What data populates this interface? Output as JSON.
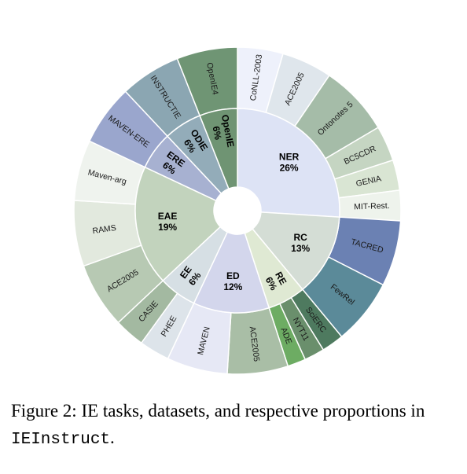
{
  "chart_data": {
    "type": "sunburst",
    "inner_ring": [
      {
        "name": "NER",
        "pct_label": "26%",
        "value": 26,
        "color": "#dde3f5"
      },
      {
        "name": "RC",
        "pct_label": "13%",
        "value": 13,
        "color": "#d4ddd5"
      },
      {
        "name": "RE",
        "pct_label": "6%",
        "value": 6,
        "color": "#dfe9d3"
      },
      {
        "name": "ED",
        "pct_label": "12%",
        "value": 12,
        "color": "#d3d6ec"
      },
      {
        "name": "EE",
        "pct_label": "6%",
        "value": 6,
        "color": "#d6dfe4"
      },
      {
        "name": "EAE",
        "pct_label": "19%",
        "value": 19,
        "color": "#c2d3bd"
      },
      {
        "name": "ERE",
        "pct_label": "6%",
        "value": 6,
        "color": "#a7b1d1"
      },
      {
        "name": "ODIE",
        "pct_label": "6%",
        "value": 6,
        "color": "#93acb9"
      },
      {
        "name": "OpenIE",
        "pct_label": "6%",
        "value": 6,
        "color": "#6f9473"
      }
    ],
    "outer_ring": [
      {
        "name": "CoNLL-2003",
        "parent": "NER",
        "value": 4.5,
        "color": "#eef1fb"
      },
      {
        "name": "ACE2005",
        "parent": "NER",
        "value": 5.0,
        "color": "#dfe6ec"
      },
      {
        "name": "Ontonotes 5",
        "parent": "NER",
        "value": 7.0,
        "color": "#a5bca8"
      },
      {
        "name": "BC5CDR",
        "parent": "NER",
        "value": 3.5,
        "color": "#c5d5c2"
      },
      {
        "name": "GENIA",
        "parent": "NER",
        "value": 3.0,
        "color": "#d9e5d3"
      },
      {
        "name": "MIT-Rest.",
        "parent": "NER",
        "value": 3.0,
        "color": "#eef3ec"
      },
      {
        "name": "TACRED",
        "parent": "RC",
        "value": 6.5,
        "color": "#6b81b3"
      },
      {
        "name": "FewRel",
        "parent": "RC",
        "value": 6.5,
        "color": "#5b8a99"
      },
      {
        "name": "SciERC",
        "parent": "RE",
        "value": 2.2,
        "color": "#4e7a5f"
      },
      {
        "name": "NYT11",
        "parent": "RE",
        "value": 2.0,
        "color": "#6a8f6c"
      },
      {
        "name": "ADE",
        "parent": "RE",
        "value": 1.8,
        "color": "#6dac63"
      },
      {
        "name": "ACE2005",
        "parent": "ED",
        "value": 6.0,
        "color": "#a9bea6"
      },
      {
        "name": "MAVEN",
        "parent": "ED",
        "value": 6.0,
        "color": "#e6e8f5"
      },
      {
        "name": "PHEE",
        "parent": "EE",
        "value": 3.0,
        "color": "#dde4ea"
      },
      {
        "name": "CASIE",
        "parent": "EE",
        "value": 3.0,
        "color": "#a3b9a1"
      },
      {
        "name": "ACE2005",
        "parent": "EAE",
        "value": 6.5,
        "color": "#b7c9b3"
      },
      {
        "name": "RAMS",
        "parent": "EAE",
        "value": 6.5,
        "color": "#e2e9de"
      },
      {
        "name": "Maven-arg",
        "parent": "EAE",
        "value": 6.0,
        "color": "#eff3ee"
      },
      {
        "name": "MAVEN-ERE",
        "parent": "ERE",
        "value": 6.0,
        "color": "#9aa6cd"
      },
      {
        "name": "INSTRUCTIE",
        "parent": "ODIE",
        "value": 6.0,
        "color": "#8ba6b2"
      },
      {
        "name": "OpenIE4",
        "parent": "OpenIE",
        "value": 6.0,
        "color": "#6f9574"
      }
    ]
  },
  "caption": {
    "prefix": "Figure 2: IE tasks, datasets, and respective proportions in ",
    "code": "IEInstruct",
    "suffix": "."
  }
}
